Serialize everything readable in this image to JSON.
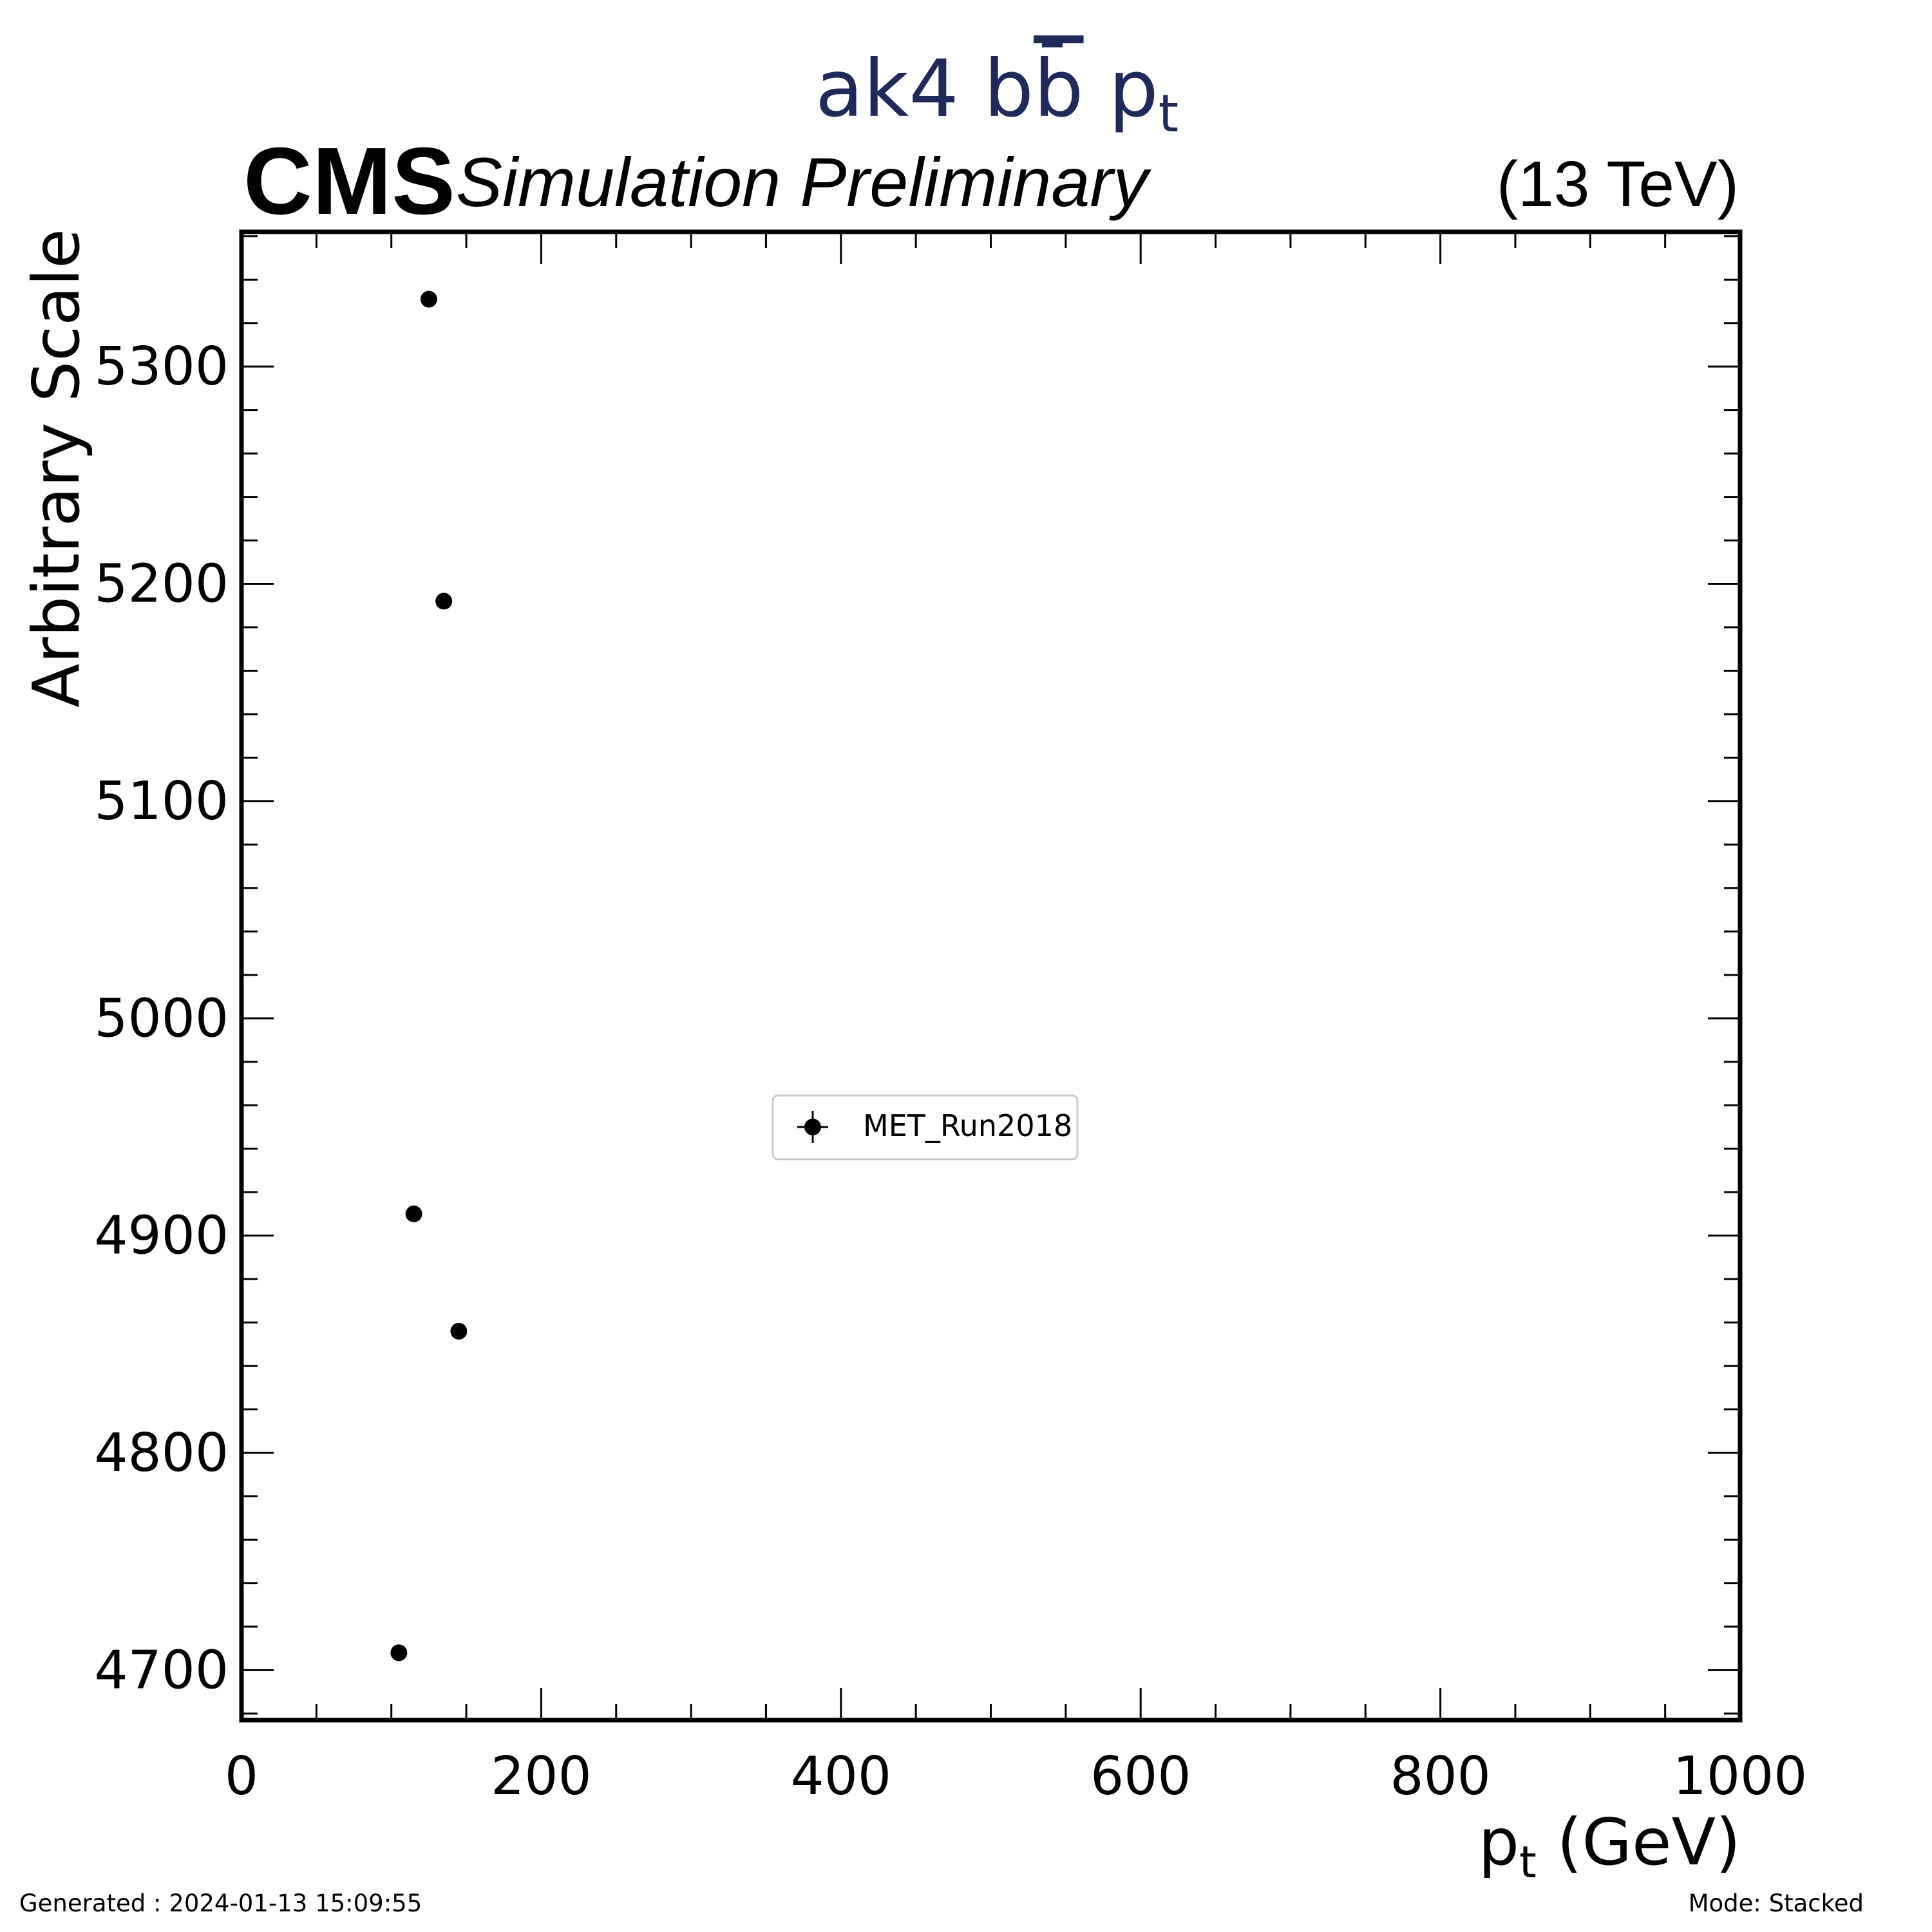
{
  "chart_data": {
    "type": "scatter",
    "title": {
      "prefix": "ak4 b",
      "bbar": "b",
      "mid": " p",
      "sub": "t"
    },
    "experiment": "CMS",
    "status": "Simulation Preliminary",
    "energy": "(13 TeV)",
    "xlabel": {
      "main": "p",
      "sub": "t",
      "unit": " (GeV)"
    },
    "ylabel": "Arbitrary Scale",
    "xlim": [
      0,
      1000
    ],
    "ylim": [
      4677,
      5362
    ],
    "x_ticks": [
      "0",
      "200",
      "400",
      "600",
      "800",
      "1000"
    ],
    "x_tick_values": [
      0,
      200,
      400,
      600,
      800,
      1000
    ],
    "y_ticks": [
      "4700",
      "4800",
      "4900",
      "5000",
      "5100",
      "5200",
      "5300"
    ],
    "y_tick_values": [
      4700,
      4800,
      4900,
      5000,
      5100,
      5200,
      5300
    ],
    "grid": false,
    "legend_position": "center",
    "series": [
      {
        "name": "MET_Run2018",
        "color": "#000000",
        "points": [
          {
            "x": 105,
            "y": 4708
          },
          {
            "x": 115,
            "y": 4910
          },
          {
            "x": 125,
            "y": 5331
          },
          {
            "x": 135,
            "y": 5192
          },
          {
            "x": 145,
            "y": 4856
          }
        ]
      }
    ]
  },
  "footer": {
    "generated": "Generated : 2024-01-13 15:09:55",
    "mode": "Mode: Stacked"
  },
  "colors": {
    "title": "#1f2a5a",
    "axis": "#000000",
    "legend_border": "#cccccc"
  }
}
